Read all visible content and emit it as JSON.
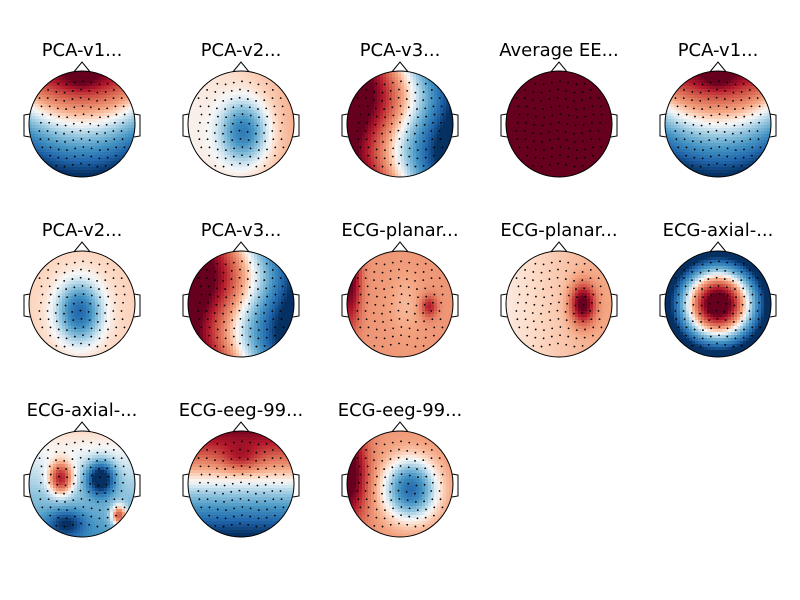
{
  "chart_data": {
    "type": "heatmap",
    "layout": {
      "rows": 3,
      "cols": 5
    },
    "colormap": {
      "negative": "#053061",
      "neutral": "#f7f7f7",
      "positive": "#67001f"
    },
    "panels": [
      {
        "title": "PCA-v1...",
        "row": 0,
        "col": 0,
        "field": {
          "kind": "pca_v1"
        }
      },
      {
        "title": "PCA-v2...",
        "row": 0,
        "col": 1,
        "field": {
          "kind": "pca_v2a"
        }
      },
      {
        "title": "PCA-v3...",
        "row": 0,
        "col": 2,
        "field": {
          "kind": "pca_v3"
        }
      },
      {
        "title": "Average EE...",
        "row": 0,
        "col": 3,
        "field": {
          "kind": "uniform"
        }
      },
      {
        "title": "PCA-v1...",
        "row": 0,
        "col": 4,
        "field": {
          "kind": "pca_v1"
        }
      },
      {
        "title": "PCA-v2...",
        "row": 1,
        "col": 0,
        "field": {
          "kind": "pca_v2b"
        }
      },
      {
        "title": "PCA-v3...",
        "row": 1,
        "col": 1,
        "field": {
          "kind": "pca_v3"
        }
      },
      {
        "title": "ECG-planar...",
        "row": 1,
        "col": 2,
        "field": {
          "kind": "ecg_planar1"
        }
      },
      {
        "title": "ECG-planar...",
        "row": 1,
        "col": 3,
        "field": {
          "kind": "ecg_planar2"
        }
      },
      {
        "title": "ECG-axial-...",
        "row": 1,
        "col": 4,
        "field": {
          "kind": "ecg_axial1"
        }
      },
      {
        "title": "ECG-axial-...",
        "row": 2,
        "col": 0,
        "field": {
          "kind": "ecg_axial2"
        }
      },
      {
        "title": "ECG-eeg-99...",
        "row": 2,
        "col": 1,
        "field": {
          "kind": "ecg_eeg1"
        }
      },
      {
        "title": "ECG-eeg-99...",
        "row": 2,
        "col": 2,
        "field": {
          "kind": "ecg_eeg2"
        }
      }
    ]
  }
}
